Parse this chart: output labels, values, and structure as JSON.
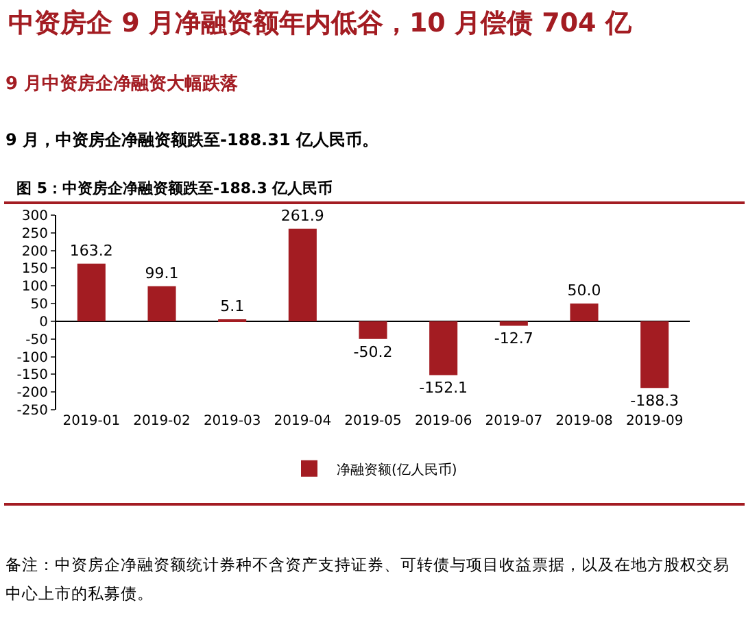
{
  "chart_data": {
    "type": "bar",
    "title": "中资房企 9 月净融资额年内低谷，10 月偿债 704 亿",
    "subtitle": "9 月中资房企净融资大幅跌落",
    "annotations": [
      "9 月，中资房企净融资额跌至-188.31 亿人民币。",
      "图 5：中资房企净融资额跌至-188.3 亿人民币",
      "备注：中资房企净融资额统计券种不含资产支持证券、可转债与项目收益票据，以及在地方股权交易中心上市的私募债。"
    ],
    "categories": [
      "2019-01",
      "2019-02",
      "2019-03",
      "2019-04",
      "2019-05",
      "2019-06",
      "2019-07",
      "2019-08",
      "2019-09"
    ],
    "series": [
      {
        "name": "净融资额(亿人民币)",
        "color": "#a31c22",
        "values": [
          163.2,
          99.1,
          5.1,
          261.9,
          -50.2,
          -152.1,
          -12.7,
          50.0,
          -188.3
        ],
        "value_labels": [
          "163.2",
          "99.1",
          "5.1",
          "261.9",
          "-50.2",
          "-152.1",
          "-12.7",
          "50.0",
          "-188.3"
        ]
      }
    ],
    "ylim": [
      -250,
      300
    ],
    "yticks": [
      -250,
      -200,
      -150,
      -100,
      -50,
      0,
      50,
      100,
      150,
      200,
      250,
      300
    ],
    "legend": "bottom"
  }
}
